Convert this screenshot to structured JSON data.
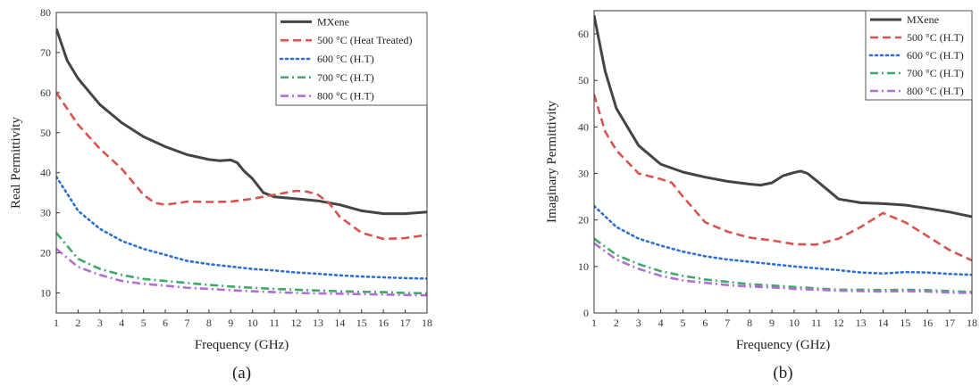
{
  "chart_data": [
    {
      "type": "line",
      "caption": "(a)",
      "xlabel": "Frequency (GHz)",
      "ylabel": "Real Permittivity",
      "xlim": [
        1,
        18
      ],
      "ylim": [
        5,
        80
      ],
      "x_ticks": [
        1,
        2,
        3,
        4,
        5,
        6,
        7,
        8,
        9,
        10,
        11,
        12,
        13,
        14,
        15,
        16,
        17,
        18
      ],
      "y_ticks": [
        10,
        20,
        30,
        40,
        50,
        60,
        70,
        80
      ],
      "grid": false,
      "legend_position": "top-right",
      "series": [
        {
          "name": "MXene",
          "color": "#444444",
          "style": "solid",
          "x": [
            1,
            1.5,
            2,
            3,
            4,
            5,
            6,
            7,
            8,
            8.5,
            9,
            9.3,
            9.6,
            10,
            10.5,
            11,
            12,
            13,
            14,
            15,
            16,
            17,
            18
          ],
          "y": [
            76,
            68,
            63.5,
            57,
            52.5,
            49,
            46.5,
            44.5,
            43.3,
            43,
            43.2,
            42.5,
            40.5,
            38.5,
            35,
            34,
            33.5,
            33,
            32,
            30.5,
            29.8,
            29.8,
            30.2
          ]
        },
        {
          "name": "500 °C (Heat Treated)",
          "color": "#d9534f",
          "style": "dash",
          "x": [
            1,
            2,
            3,
            4,
            5,
            5.5,
            6,
            7,
            8,
            9,
            10,
            11,
            12,
            12.5,
            13,
            13.5,
            14,
            15,
            16,
            17,
            18
          ],
          "y": [
            60,
            52,
            46,
            41,
            34.5,
            32.5,
            32,
            32.8,
            32.7,
            32.8,
            33.5,
            34.5,
            35.5,
            35.3,
            34.5,
            32.5,
            29,
            25,
            23.5,
            23.7,
            24.5
          ]
        },
        {
          "name": "600 °C (H.T)",
          "color": "#2e6fd1",
          "style": "dot",
          "x": [
            1,
            2,
            3,
            4,
            5,
            6,
            7,
            8,
            9,
            10,
            11,
            12,
            13,
            14,
            15,
            16,
            17,
            18
          ],
          "y": [
            39,
            30.5,
            26,
            23,
            21,
            19.5,
            18,
            17.2,
            16.6,
            16,
            15.6,
            15.1,
            14.8,
            14.4,
            14.1,
            13.9,
            13.7,
            13.6
          ]
        },
        {
          "name": "700 °C (H.T)",
          "color": "#3fa86a",
          "style": "dashdot",
          "x": [
            1,
            2,
            3,
            4,
            5,
            6,
            7,
            8,
            9,
            10,
            11,
            12,
            13,
            14,
            15,
            16,
            17,
            18
          ],
          "y": [
            25,
            18.5,
            16,
            14.5,
            13.5,
            13,
            12.5,
            12,
            11.6,
            11.3,
            11,
            10.8,
            10.6,
            10.4,
            10.3,
            10.2,
            10,
            9.9
          ]
        },
        {
          "name": "800 °C (H.T)",
          "color": "#b06fd6",
          "style": "dashdot",
          "x": [
            1,
            2,
            3,
            4,
            5,
            6,
            7,
            8,
            9,
            10,
            11,
            12,
            13,
            14,
            15,
            16,
            17,
            18
          ],
          "y": [
            21,
            16.5,
            14.5,
            13,
            12.3,
            11.8,
            11.3,
            11,
            10.7,
            10.4,
            10.2,
            10,
            9.9,
            9.8,
            9.7,
            9.6,
            9.5,
            9.4
          ]
        }
      ]
    },
    {
      "type": "line",
      "caption": "(b)",
      "xlabel": "Frequency (GHz)",
      "ylabel": "Imaginary Permittivity",
      "xlim": [
        1,
        18
      ],
      "ylim": [
        0,
        65
      ],
      "x_ticks": [
        1,
        2,
        3,
        4,
        5,
        6,
        7,
        8,
        9,
        10,
        11,
        12,
        13,
        14,
        15,
        16,
        17,
        18
      ],
      "y_ticks": [
        0,
        10,
        20,
        30,
        40,
        50,
        60
      ],
      "grid": false,
      "legend_position": "top-right",
      "series": [
        {
          "name": "MXene",
          "color": "#444444",
          "style": "solid",
          "x": [
            1,
            1.5,
            2,
            3,
            4,
            5,
            6,
            7,
            8,
            8.5,
            9,
            9.5,
            10,
            10.3,
            10.6,
            11,
            11.5,
            12,
            13,
            14,
            15,
            16,
            17,
            18
          ],
          "y": [
            64,
            52,
            44,
            36,
            32,
            30.3,
            29.2,
            28.3,
            27.7,
            27.5,
            28,
            29.5,
            30.2,
            30.5,
            30,
            28.5,
            26.5,
            24.5,
            23.7,
            23.5,
            23.2,
            22.5,
            21.7,
            20.7
          ]
        },
        {
          "name": "500 °C (H.T)",
          "color": "#d9534f",
          "style": "dash",
          "x": [
            1,
            1.5,
            2,
            3,
            4,
            4.5,
            5,
            6,
            7,
            8,
            9,
            10,
            11,
            12,
            13,
            14,
            15,
            16,
            17,
            18
          ],
          "y": [
            47,
            39,
            35,
            30,
            28.8,
            28,
            25,
            19.5,
            17.5,
            16.2,
            15.6,
            14.8,
            14.7,
            16,
            18.5,
            21.5,
            19.5,
            16.5,
            13.5,
            11.3
          ]
        },
        {
          "name": "600 °C (H.T)",
          "color": "#2e6fd1",
          "style": "dot",
          "x": [
            1,
            2,
            3,
            4,
            5,
            6,
            7,
            8,
            9,
            10,
            11,
            12,
            13,
            14,
            15,
            16,
            17,
            18
          ],
          "y": [
            23,
            18.5,
            16,
            14.5,
            13.2,
            12.2,
            11.5,
            11,
            10.5,
            10,
            9.6,
            9.2,
            8.7,
            8.5,
            8.8,
            8.7,
            8.4,
            8.2
          ]
        },
        {
          "name": "700 °C (H.T)",
          "color": "#3fa86a",
          "style": "dashdot",
          "x": [
            1,
            2,
            3,
            4,
            5,
            6,
            7,
            8,
            9,
            10,
            11,
            12,
            13,
            14,
            15,
            16,
            17,
            18
          ],
          "y": [
            16,
            12.5,
            10.5,
            9,
            8,
            7.2,
            6.7,
            6.2,
            5.9,
            5.6,
            5.3,
            5,
            5,
            4.9,
            5,
            4.9,
            4.7,
            4.5
          ]
        },
        {
          "name": "800 °C (H.T)",
          "color": "#b06fd6",
          "style": "dashdot",
          "x": [
            1,
            2,
            3,
            4,
            5,
            6,
            7,
            8,
            9,
            10,
            11,
            12,
            13,
            14,
            15,
            16,
            17,
            18
          ],
          "y": [
            15,
            11.5,
            9.5,
            8,
            7,
            6.5,
            6,
            5.7,
            5.5,
            5.2,
            5,
            4.8,
            4.7,
            4.6,
            4.7,
            4.6,
            4.4,
            4.3
          ]
        }
      ]
    }
  ]
}
